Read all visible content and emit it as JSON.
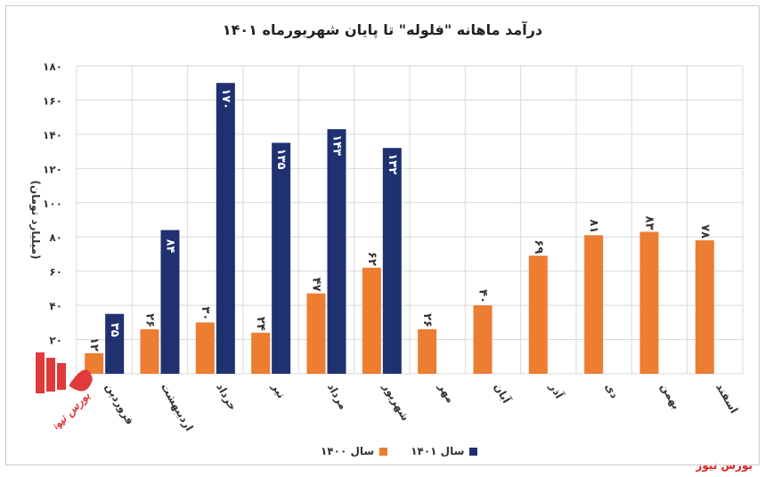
{
  "chart_data": {
    "type": "bar",
    "title": "درآمد ماهانه \"فلوله\" تا پایان شهریورماه ۱۴۰۱",
    "ylabel": "(میلیارد تومان)",
    "xlabel": "",
    "ylim": [
      0,
      180
    ],
    "yticks": [
      "۰",
      "۲۰",
      "۴۰",
      "۶۰",
      "۸۰",
      "۱۰۰",
      "۱۲۰",
      "۱۴۰",
      "۱۶۰",
      "۱۸۰"
    ],
    "ytick_values": [
      0,
      20,
      40,
      60,
      80,
      100,
      120,
      140,
      160,
      180
    ],
    "grid": true,
    "legend_position": "bottom",
    "categories": [
      "فروردین",
      "اردیبهشت",
      "خرداد",
      "تیر",
      "مرداد",
      "شهریور",
      "مهر",
      "آبان",
      "آذر",
      "دی",
      "بهمن",
      "اسفند"
    ],
    "series": [
      {
        "name": "سال ۱۴۰۰",
        "color": "#ed7d31",
        "values": [
          12,
          26,
          30,
          24,
          47,
          62,
          26,
          40,
          69,
          81,
          83,
          78
        ],
        "labels": [
          "۱۲",
          "۲۶",
          "۳۰",
          "۲۴",
          "۴۷",
          "۶۲",
          "۲۶",
          "۴۰",
          "۶۹",
          "۸۱",
          "۸۳",
          "۷۸"
        ]
      },
      {
        "name": "سال ۱۴۰۱",
        "color": "#1f3171",
        "values": [
          35,
          84,
          170,
          135,
          143,
          132,
          null,
          null,
          null,
          null,
          null,
          null
        ],
        "labels": [
          "۳۵",
          "۸۴",
          "۱۷۰",
          "۱۳۵",
          "۱۴۳",
          "۱۳۲",
          "",
          "",
          "",
          "",
          "",
          ""
        ]
      }
    ]
  },
  "credit": "بورس نیوز",
  "watermark": "بورس نیوز",
  "colors": {
    "grid": "#d9d9d9",
    "logo_red": "#e03a3a"
  }
}
